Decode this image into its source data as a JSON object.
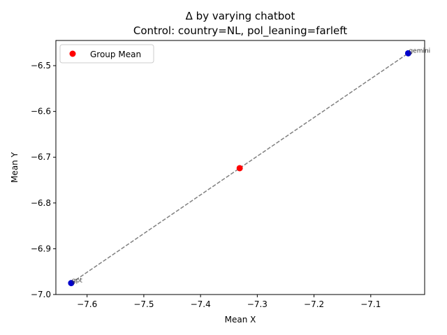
{
  "chart_data": {
    "type": "scatter",
    "title": "Δ by varying chatbot",
    "subtitle": "Control: country=NL, pol_leaning=farleft",
    "xlabel": "Mean X",
    "ylabel": "Mean Y",
    "xlim": [
      -7.655,
      -7.005
    ],
    "ylim": [
      -7.0,
      -6.445
    ],
    "xticks": [
      -7.6,
      -7.5,
      -7.4,
      -7.3,
      -7.2,
      -7.1
    ],
    "xtick_labels": [
      "−7.6",
      "−7.5",
      "−7.4",
      "−7.3",
      "−7.2",
      "−7.1"
    ],
    "yticks": [
      -7.0,
      -6.9,
      -6.8,
      -6.7,
      -6.6,
      -6.5
    ],
    "ytick_labels": [
      "−7.0",
      "−6.9",
      "−6.8",
      "−6.7",
      "−6.6",
      "−6.5"
    ],
    "grid": false,
    "legend": {
      "placement": "top-left",
      "entries": [
        {
          "label": "Group Mean",
          "color": "#ff0000"
        }
      ]
    },
    "points": [
      {
        "label": "gpt",
        "x": -7.628,
        "y": -6.975,
        "color": "#0000cc"
      },
      {
        "label": "gemini",
        "x": -7.034,
        "y": -6.473,
        "color": "#0000cc"
      }
    ],
    "group_mean": {
      "x": -7.331,
      "y": -6.724,
      "color": "#ff0000"
    },
    "connector": {
      "style": "dashed",
      "color": "#808080"
    }
  }
}
